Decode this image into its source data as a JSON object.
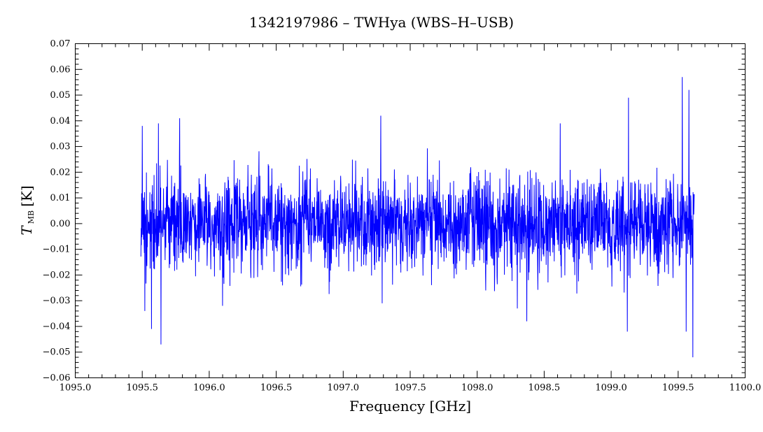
{
  "chart_data": {
    "type": "line",
    "title": "1342197986 – TWHya (WBS–H–USB)",
    "xlabel": "Frequency [GHz]",
    "ylabel_main": "T",
    "ylabel_sub": "MB",
    "ylabel_unit": "[K]",
    "xlim": [
      1095.0,
      1100.0
    ],
    "ylim": [
      -0.06,
      0.07
    ],
    "x_ticks": [
      1095.0,
      1095.5,
      1096.0,
      1096.5,
      1097.0,
      1097.5,
      1098.0,
      1098.5,
      1099.0,
      1099.5,
      1100.0
    ],
    "x_tick_labels": [
      "1095.0",
      "1095.5",
      "1096.0",
      "1096.5",
      "1097.0",
      "1097.5",
      "1098.0",
      "1098.5",
      "1099.0",
      "1099.5",
      "1100.0"
    ],
    "y_ticks": [
      -0.06,
      -0.05,
      -0.04,
      -0.03,
      -0.02,
      -0.01,
      0.0,
      0.01,
      0.02,
      0.03,
      0.04,
      0.05,
      0.06,
      0.07
    ],
    "y_tick_labels": [
      "−0.06",
      "−0.05",
      "−0.04",
      "−0.03",
      "−0.02",
      "−0.01",
      "0.00",
      "0.01",
      "0.02",
      "0.03",
      "0.04",
      "0.05",
      "0.06",
      "0.07"
    ],
    "grid": false,
    "series": [
      {
        "color": "#0000ff",
        "x_start": 1095.49,
        "x_end": 1099.62,
        "typical_range": [
          -0.02,
          0.02
        ],
        "peaks": [
          {
            "x": 1095.5,
            "y": 0.038
          },
          {
            "x": 1095.52,
            "y": -0.034
          },
          {
            "x": 1095.57,
            "y": -0.041
          },
          {
            "x": 1095.62,
            "y": 0.039
          },
          {
            "x": 1095.64,
            "y": -0.047
          },
          {
            "x": 1095.78,
            "y": 0.041
          },
          {
            "x": 1096.1,
            "y": -0.032
          },
          {
            "x": 1097.28,
            "y": 0.042
          },
          {
            "x": 1097.29,
            "y": -0.031
          },
          {
            "x": 1098.3,
            "y": -0.033
          },
          {
            "x": 1098.37,
            "y": -0.038
          },
          {
            "x": 1098.62,
            "y": 0.039
          },
          {
            "x": 1099.12,
            "y": -0.042
          },
          {
            "x": 1099.13,
            "y": 0.049
          },
          {
            "x": 1099.53,
            "y": 0.057
          },
          {
            "x": 1099.56,
            "y": -0.042
          },
          {
            "x": 1099.58,
            "y": 0.052
          },
          {
            "x": 1099.61,
            "y": -0.052
          }
        ]
      }
    ]
  }
}
